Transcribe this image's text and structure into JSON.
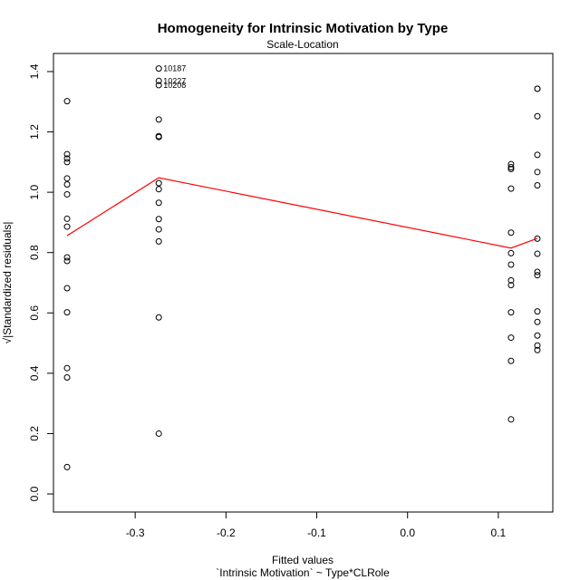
{
  "chart_data": {
    "type": "scatter",
    "title": "Homogeneity for Intrinsic Motivation by Type",
    "subtitle": "Scale-Location",
    "xlabel": "Fitted values",
    "xlabel2": "`Intrinsic Motivation` ~ Type*CLRole",
    "ylabel": "√|Standardized residuals|",
    "xlim": [
      -0.39,
      0.16
    ],
    "ylim": [
      -0.06,
      1.46
    ],
    "xticks": [
      -0.3,
      -0.2,
      -0.1,
      0.0,
      0.1
    ],
    "xtick_labels": [
      "-0.3",
      "-0.2",
      "-0.1",
      "0.0",
      "0.1"
    ],
    "yticks": [
      0.0,
      0.2,
      0.4,
      0.6,
      0.8,
      1.0,
      1.2,
      1.4
    ],
    "ytick_labels": [
      "0.0",
      "0.2",
      "0.4",
      "0.6",
      "0.8",
      "1.0",
      "1.2",
      "1.4"
    ],
    "grid": false,
    "point_colors": "#000000",
    "smooth_color": "#ff0000",
    "points": [
      {
        "x": -0.375,
        "y": 1.302
      },
      {
        "x": -0.375,
        "y": 1.126
      },
      {
        "x": -0.375,
        "y": 1.112
      },
      {
        "x": -0.375,
        "y": 1.1
      },
      {
        "x": -0.375,
        "y": 1.046
      },
      {
        "x": -0.375,
        "y": 1.026
      },
      {
        "x": -0.375,
        "y": 0.993
      },
      {
        "x": -0.375,
        "y": 0.912
      },
      {
        "x": -0.375,
        "y": 0.886
      },
      {
        "x": -0.375,
        "y": 0.784
      },
      {
        "x": -0.375,
        "y": 0.772
      },
      {
        "x": -0.375,
        "y": 0.682
      },
      {
        "x": -0.375,
        "y": 0.602
      },
      {
        "x": -0.375,
        "y": 0.417
      },
      {
        "x": -0.375,
        "y": 0.386
      },
      {
        "x": -0.375,
        "y": 0.089
      },
      {
        "x": -0.274,
        "y": 1.41
      },
      {
        "x": -0.274,
        "y": 1.369
      },
      {
        "x": -0.274,
        "y": 1.355
      },
      {
        "x": -0.274,
        "y": 1.241
      },
      {
        "x": -0.274,
        "y": 1.186
      },
      {
        "x": -0.274,
        "y": 1.183
      },
      {
        "x": -0.274,
        "y": 1.03
      },
      {
        "x": -0.274,
        "y": 1.01
      },
      {
        "x": -0.274,
        "y": 0.965
      },
      {
        "x": -0.274,
        "y": 0.911
      },
      {
        "x": -0.274,
        "y": 0.877
      },
      {
        "x": -0.274,
        "y": 0.837
      },
      {
        "x": -0.274,
        "y": 0.585
      },
      {
        "x": -0.274,
        "y": 0.2
      },
      {
        "x": 0.114,
        "y": 1.093
      },
      {
        "x": 0.114,
        "y": 1.083
      },
      {
        "x": 0.114,
        "y": 1.077
      },
      {
        "x": 0.114,
        "y": 1.012
      },
      {
        "x": 0.114,
        "y": 0.866
      },
      {
        "x": 0.114,
        "y": 0.798
      },
      {
        "x": 0.114,
        "y": 0.76
      },
      {
        "x": 0.114,
        "y": 0.708
      },
      {
        "x": 0.114,
        "y": 0.692
      },
      {
        "x": 0.114,
        "y": 0.602
      },
      {
        "x": 0.114,
        "y": 0.518
      },
      {
        "x": 0.114,
        "y": 0.441
      },
      {
        "x": 0.114,
        "y": 0.247
      },
      {
        "x": 0.143,
        "y": 1.343
      },
      {
        "x": 0.143,
        "y": 1.343
      },
      {
        "x": 0.143,
        "y": 1.252
      },
      {
        "x": 0.143,
        "y": 1.124
      },
      {
        "x": 0.143,
        "y": 1.067
      },
      {
        "x": 0.143,
        "y": 1.023
      },
      {
        "x": 0.143,
        "y": 0.846
      },
      {
        "x": 0.143,
        "y": 0.796
      },
      {
        "x": 0.143,
        "y": 0.736
      },
      {
        "x": 0.143,
        "y": 0.725
      },
      {
        "x": 0.143,
        "y": 0.605
      },
      {
        "x": 0.143,
        "y": 0.57
      },
      {
        "x": 0.143,
        "y": 0.525
      },
      {
        "x": 0.143,
        "y": 0.492
      },
      {
        "x": 0.143,
        "y": 0.477
      }
    ],
    "annotations": [
      {
        "label": "10187",
        "x": -0.274,
        "y": 1.41
      },
      {
        "label": "10227",
        "x": -0.274,
        "y": 1.369
      },
      {
        "label": "10208",
        "x": -0.274,
        "y": 1.355
      }
    ],
    "smooth_line": [
      {
        "x": -0.375,
        "y": 0.856
      },
      {
        "x": -0.274,
        "y": 1.048
      },
      {
        "x": 0.114,
        "y": 0.815
      },
      {
        "x": 0.143,
        "y": 0.847
      }
    ]
  }
}
